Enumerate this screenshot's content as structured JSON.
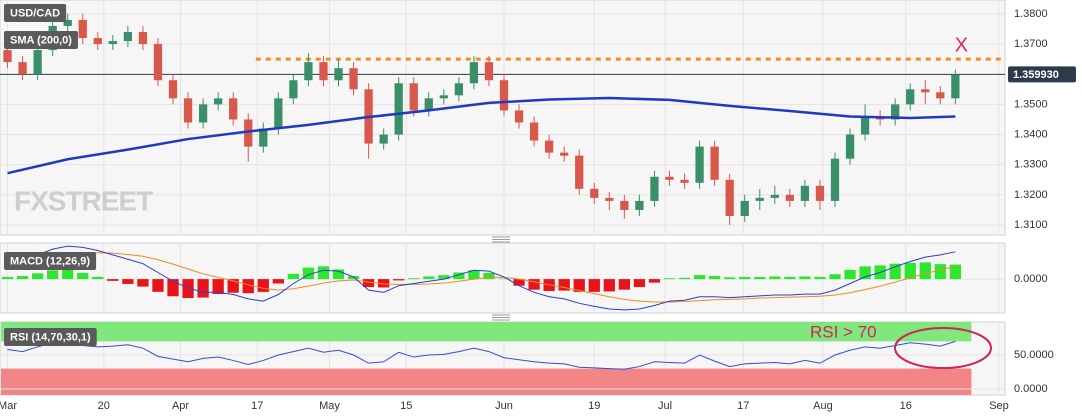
{
  "chart_data": [
    {
      "type": "candlestick",
      "title": "USD/CAD",
      "watermark": "FXSTREET",
      "x": [
        0,
        1,
        2,
        3,
        4,
        5,
        6,
        7,
        8,
        9,
        10,
        11,
        12,
        13,
        14,
        15,
        16,
        17,
        18,
        19,
        20,
        21,
        22,
        23,
        24,
        25,
        26,
        27,
        28,
        29,
        30,
        31,
        32,
        33,
        34,
        35,
        36,
        37,
        38,
        39,
        40,
        41,
        42,
        43,
        44,
        45,
        46,
        47,
        48,
        49,
        50,
        51,
        52,
        53,
        54,
        55,
        56,
        57,
        58,
        59,
        60,
        61,
        62,
        63
      ],
      "open": [
        1.368,
        1.364,
        1.36,
        1.368,
        1.376,
        1.378,
        1.372,
        1.37,
        1.371,
        1.374,
        1.37,
        1.358,
        1.352,
        1.344,
        1.35,
        1.352,
        1.345,
        1.336,
        1.342,
        1.352,
        1.358,
        1.364,
        1.358,
        1.362,
        1.355,
        1.337,
        1.34,
        1.357,
        1.348,
        1.352,
        1.353,
        1.357,
        1.364,
        1.358,
        1.348,
        1.344,
        1.338,
        1.334,
        1.333,
        1.322,
        1.319,
        1.318,
        1.315,
        1.318,
        1.326,
        1.325,
        1.324,
        1.336,
        1.325,
        1.313,
        1.318,
        1.319,
        1.32,
        1.318,
        1.323,
        1.318,
        1.332,
        1.34,
        1.346,
        1.345,
        1.35,
        1.355,
        1.354,
        1.352
      ],
      "high": [
        1.37,
        1.366,
        1.37,
        1.378,
        1.38,
        1.38,
        1.374,
        1.373,
        1.376,
        1.376,
        1.372,
        1.36,
        1.354,
        1.352,
        1.354,
        1.354,
        1.347,
        1.344,
        1.354,
        1.36,
        1.367,
        1.366,
        1.365,
        1.364,
        1.357,
        1.342,
        1.359,
        1.359,
        1.354,
        1.355,
        1.359,
        1.366,
        1.366,
        1.36,
        1.35,
        1.346,
        1.34,
        1.336,
        1.335,
        1.324,
        1.321,
        1.32,
        1.32,
        1.328,
        1.328,
        1.327,
        1.338,
        1.338,
        1.327,
        1.32,
        1.322,
        1.323,
        1.322,
        1.325,
        1.325,
        1.334,
        1.342,
        1.35,
        1.348,
        1.352,
        1.357,
        1.358,
        1.356,
        1.3615
      ],
      "low": [
        1.362,
        1.358,
        1.358,
        1.366,
        1.374,
        1.37,
        1.368,
        1.368,
        1.369,
        1.368,
        1.356,
        1.35,
        1.342,
        1.342,
        1.348,
        1.343,
        1.331,
        1.334,
        1.34,
        1.35,
        1.356,
        1.356,
        1.356,
        1.353,
        1.332,
        1.335,
        1.338,
        1.346,
        1.346,
        1.35,
        1.351,
        1.355,
        1.356,
        1.346,
        1.342,
        1.336,
        1.332,
        1.331,
        1.32,
        1.317,
        1.315,
        1.312,
        1.313,
        1.316,
        1.323,
        1.322,
        1.322,
        1.323,
        1.31,
        1.311,
        1.315,
        1.317,
        1.316,
        1.316,
        1.315,
        1.316,
        1.33,
        1.338,
        1.343,
        1.343,
        1.348,
        1.35,
        1.35,
        1.35
      ],
      "close": [
        1.364,
        1.36,
        1.368,
        1.376,
        1.378,
        1.372,
        1.37,
        1.371,
        1.374,
        1.37,
        1.358,
        1.352,
        1.344,
        1.35,
        1.352,
        1.345,
        1.336,
        1.342,
        1.352,
        1.358,
        1.364,
        1.358,
        1.362,
        1.355,
        1.337,
        1.34,
        1.357,
        1.348,
        1.352,
        1.353,
        1.357,
        1.364,
        1.358,
        1.348,
        1.344,
        1.338,
        1.334,
        1.333,
        1.322,
        1.319,
        1.318,
        1.315,
        1.318,
        1.326,
        1.325,
        1.324,
        1.336,
        1.325,
        1.313,
        1.318,
        1.319,
        1.32,
        1.318,
        1.323,
        1.318,
        1.332,
        1.34,
        1.346,
        1.345,
        1.35,
        1.355,
        1.354,
        1.352,
        1.35993
      ],
      "colors": {
        "up": "#3a8f69",
        "down": "#d9584c"
      },
      "overlays": [
        {
          "name": "SMA (200,0)",
          "color": "#1e3ac2",
          "x": [
            0,
            4,
            8,
            12,
            16,
            20,
            24,
            28,
            32,
            36,
            40,
            44,
            48,
            52,
            56,
            60,
            63
          ],
          "values": [
            1.3272,
            1.3318,
            1.335,
            1.3385,
            1.341,
            1.3432,
            1.3458,
            1.348,
            1.3505,
            1.3516,
            1.3521,
            1.3515,
            1.3495,
            1.3478,
            1.346,
            1.3455,
            1.346
          ]
        }
      ],
      "last_price": {
        "value": 1.35993,
        "label": "1.359930"
      },
      "resistance": {
        "value": 1.365,
        "x_start": 16.5,
        "color": "#f28c28"
      },
      "annotations": [
        "X"
      ],
      "xlim": [
        -0.5,
        66.3
      ],
      "ylim": [
        1.3067,
        1.3846
      ],
      "yticks": [
        {
          "value": 1.38,
          "label": "1.3800"
        },
        {
          "value": 1.37,
          "label": "1.3700"
        },
        {
          "value": 1.35,
          "label": "1.3500"
        },
        {
          "value": 1.34,
          "label": "1.3400"
        },
        {
          "value": 1.33,
          "label": "1.3300"
        },
        {
          "value": 1.32,
          "label": "1.3200"
        },
        {
          "value": 1.31,
          "label": "1.3100"
        }
      ],
      "xticks": [
        {
          "value": 0,
          "label": "Mar"
        },
        {
          "value": 6.4,
          "label": "20"
        },
        {
          "value": 11.5,
          "label": "Apr"
        },
        {
          "value": 16.6,
          "label": "17"
        },
        {
          "value": 21.4,
          "label": "May"
        },
        {
          "value": 26.5,
          "label": "15"
        },
        {
          "value": 33,
          "label": "Jun"
        },
        {
          "value": 39,
          "label": "19"
        },
        {
          "value": 43.7,
          "label": "Jul"
        },
        {
          "value": 48.9,
          "label": "17"
        },
        {
          "value": 54.2,
          "label": "Aug"
        },
        {
          "value": 59.7,
          "label": "16"
        },
        {
          "value": 65.9,
          "label": "Sep"
        }
      ],
      "grid": true
    },
    {
      "type": "macd",
      "title": "MACD (12,26,9)",
      "macd": {
        "color": "#2340d8",
        "values": [
          0.004,
          0.0045,
          0.0055,
          0.0068,
          0.0075,
          0.0072,
          0.0065,
          0.0055,
          0.0045,
          0.0035,
          0.0015,
          -0.0005,
          -0.002,
          -0.003,
          -0.003,
          -0.0035,
          -0.0045,
          -0.005,
          -0.0035,
          -0.001,
          0.001,
          0.002,
          0.0018,
          0.0005,
          -0.0025,
          -0.003,
          -0.0015,
          -0.001,
          -0.0005,
          0,
          0.001,
          0.002,
          0.0018,
          0.0005,
          -0.0015,
          -0.003,
          -0.004,
          -0.0045,
          -0.0055,
          -0.0062,
          -0.0068,
          -0.007,
          -0.0068,
          -0.006,
          -0.005,
          -0.0048,
          -0.004,
          -0.004,
          -0.0042,
          -0.004,
          -0.0038,
          -0.0036,
          -0.0036,
          -0.0034,
          -0.0034,
          -0.0025,
          -0.001,
          0.0005,
          0.0015,
          0.0028,
          0.004,
          0.005,
          0.0055,
          0.0062
        ]
      },
      "signal": {
        "color": "#f08a24",
        "values": [
          0.0035,
          0.0038,
          0.0042,
          0.0048,
          0.0054,
          0.0058,
          0.006,
          0.0059,
          0.0056,
          0.0052,
          0.0044,
          0.0034,
          0.0023,
          0.0012,
          0.0004,
          -0.0004,
          -0.0013,
          -0.0021,
          -0.0025,
          -0.0022,
          -0.0016,
          -0.0009,
          -0.0004,
          -0.0002,
          -0.0007,
          -0.0011,
          -0.0012,
          -0.0012,
          -0.0011,
          -0.0009,
          -0.0005,
          0,
          0.0004,
          0.0004,
          0,
          -0.0006,
          -0.0013,
          -0.0019,
          -0.0026,
          -0.0033,
          -0.004,
          -0.0046,
          -0.005,
          -0.0052,
          -0.0052,
          -0.0051,
          -0.0049,
          -0.0047,
          -0.0046,
          -0.0045,
          -0.0043,
          -0.0042,
          -0.0041,
          -0.004,
          -0.0039,
          -0.0036,
          -0.0031,
          -0.0024,
          -0.0016,
          -0.0007,
          0.0003,
          0.0012,
          0.0021,
          0.0029
        ]
      },
      "histogram": {
        "colors": {
          "up": "#2ee62e",
          "down": "#e8141a"
        },
        "values": [
          0.0005,
          0.0007,
          0.0013,
          0.002,
          0.0021,
          0.0014,
          0.0005,
          -0.0004,
          -0.0011,
          -0.0017,
          -0.0029,
          -0.0039,
          -0.0043,
          -0.0042,
          -0.0034,
          -0.0031,
          -0.0032,
          -0.0029,
          -0.001,
          0.0012,
          0.0026,
          0.0029,
          0.0022,
          0.0007,
          -0.0018,
          -0.0019,
          -0.0003,
          0.0002,
          0.0006,
          0.0009,
          0.0015,
          0.002,
          0.0014,
          0.0001,
          -0.0015,
          -0.0024,
          -0.0027,
          -0.0026,
          -0.0029,
          -0.0029,
          -0.0028,
          -0.0024,
          -0.0018,
          -0.0008,
          0.0002,
          0.0003,
          0.0009,
          0.0007,
          0.0004,
          0.0005,
          0.0005,
          0.0006,
          0.0005,
          0.0006,
          0.0005,
          0.0011,
          0.0021,
          0.0029,
          0.0031,
          0.0035,
          0.0037,
          0.0038,
          0.0034,
          0.0033
        ]
      },
      "ylim": [
        -0.0077,
        0.0082
      ],
      "yticks": [
        {
          "value": 0,
          "label": "0.0000"
        }
      ]
    },
    {
      "type": "rsi",
      "title": "RSI (14,70,30,1)",
      "color": "#3050d0",
      "values": [
        58,
        55,
        62,
        68,
        70,
        64,
        62,
        63,
        65,
        60,
        48,
        44,
        40,
        45,
        47,
        42,
        36,
        42,
        50,
        55,
        60,
        54,
        57,
        50,
        38,
        40,
        54,
        47,
        50,
        51,
        55,
        60,
        55,
        46,
        43,
        40,
        38,
        37,
        32,
        31,
        30,
        29,
        33,
        40,
        39,
        38,
        50,
        41,
        33,
        37,
        38,
        39,
        37,
        42,
        38,
        50,
        57,
        62,
        60,
        64,
        68,
        66,
        63,
        70
      ],
      "overbought": 70,
      "oversold": 30,
      "band_colors": {
        "over": "#7fe77b",
        "under": "#f28686"
      },
      "annotations": [
        "RSI > 70"
      ],
      "ylim": [
        -8.8,
        98.5
      ],
      "yticks": [
        {
          "value": 50,
          "label": "50.0000"
        },
        {
          "value": 0,
          "label": "0.0000"
        }
      ]
    }
  ]
}
